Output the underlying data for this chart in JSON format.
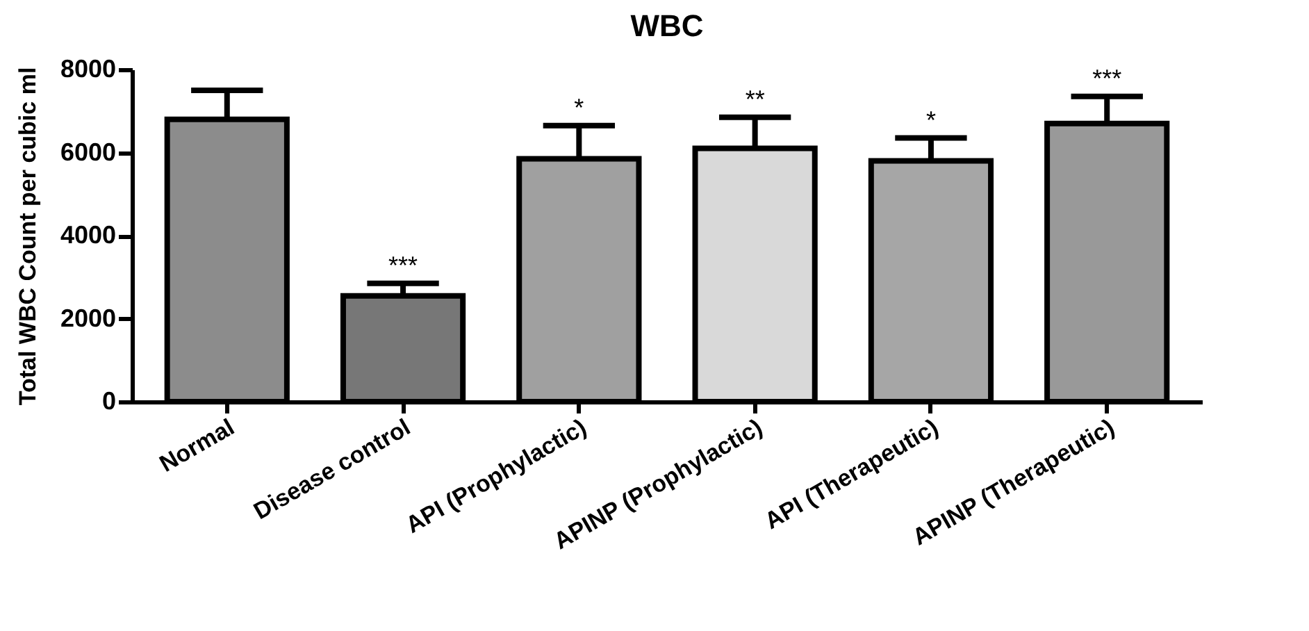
{
  "chart_data": {
    "type": "bar",
    "title": "WBC",
    "ylabel": "Total WBC Count per cubic ml",
    "categories": [
      "Normal",
      "Disease control",
      "API (Prophylactic)",
      "APINP (Prophylactic)",
      "API (Therapeutic)",
      "APINP (Therapeutic)"
    ],
    "values": [
      6800,
      2550,
      5850,
      6100,
      5800,
      6700
    ],
    "errors": [
      [
        6800,
        7500
      ],
      [
        2550,
        2850
      ],
      [
        5850,
        6650
      ],
      [
        6100,
        6850
      ],
      [
        5800,
        6350
      ],
      [
        6700,
        7350
      ]
    ],
    "colors": [
      "#8c8c8c",
      "#777777",
      "#a0a0a0",
      "#d9d9d9",
      "#a6a6a6",
      "#999999"
    ],
    "ylim": [
      0,
      8000
    ],
    "yticks": [
      0,
      2000,
      4000,
      6000,
      8000
    ],
    "grid": false,
    "annotations": [
      {
        "text": "***",
        "x": "Disease control",
        "y": 2850
      },
      {
        "text": "*",
        "x": "API (Prophylactic)",
        "y": 6650
      },
      {
        "text": "**",
        "x": "APINP (Prophylactic)",
        "y": 6850
      },
      {
        "text": "*",
        "x": "API (Therapeutic)",
        "y": 6350
      },
      {
        "text": "***",
        "x": "APINP (Therapeutic)",
        "y": 7350
      }
    ]
  }
}
